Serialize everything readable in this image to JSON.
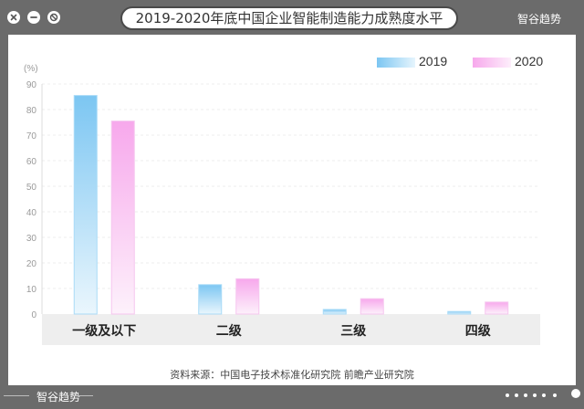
{
  "window": {
    "title": "2019-2020年底中国企业智能制造能力成熟度水平",
    "brand": "智谷趋势",
    "controls": [
      "close-icon",
      "minimize-icon",
      "block-icon"
    ]
  },
  "colors": {
    "frame": "#6b6b6b",
    "series_2019": "#7cc6f2",
    "series_2020": "#f7a8ec"
  },
  "chart_data": {
    "type": "bar",
    "unit_label": "(%)",
    "categories": [
      "一级及以下",
      "二级",
      "三级",
      "四级"
    ],
    "series": [
      {
        "name": "2019",
        "values": [
          85.5,
          11.5,
          1.8,
          1.0
        ]
      },
      {
        "name": "2020",
        "values": [
          75.5,
          13.8,
          6.0,
          4.7
        ]
      }
    ],
    "ylim": [
      0,
      90
    ],
    "yticks": [
      0,
      10,
      20,
      30,
      40,
      50,
      60,
      70,
      80,
      90
    ],
    "legend": "top-right",
    "grid": true
  },
  "source": "资料来源：中国电子技术标准化研究院 前瞻产业研究院"
}
